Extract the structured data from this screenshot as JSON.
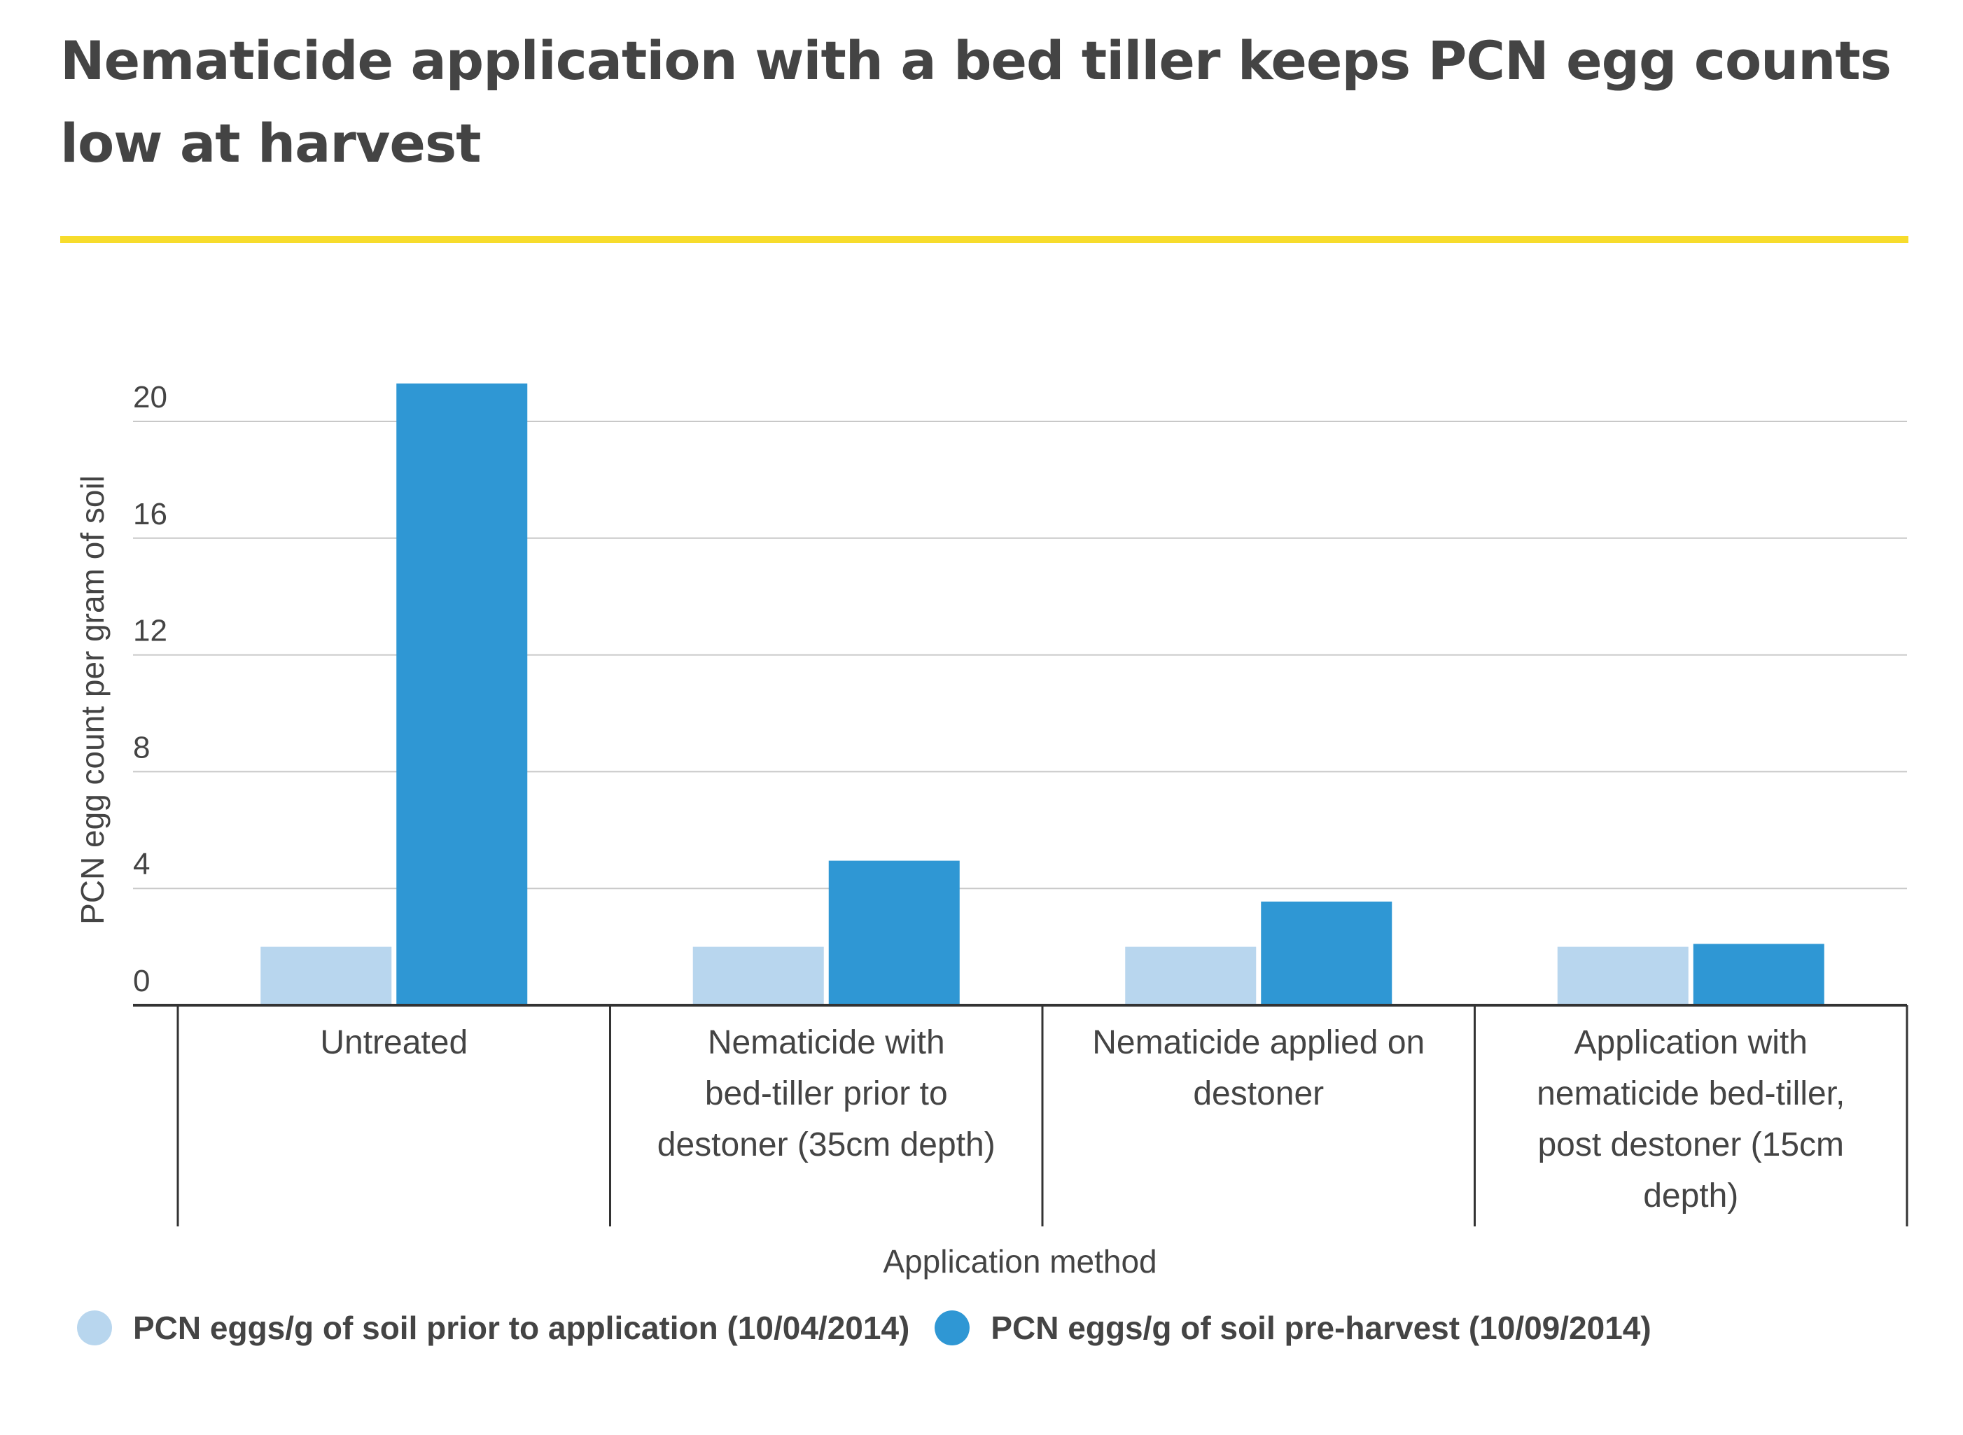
{
  "title": "Nematicide application with a bed tiller keeps PCN egg counts low at harvest",
  "colors": {
    "accent_rule": "#f7dc2c",
    "series_prior": "#b8d6ee",
    "series_harvest": "#2f97d4",
    "grid": "#c8c8c8",
    "axis": "#333333"
  },
  "chart_data": {
    "type": "bar",
    "title": "Nematicide application with a bed tiller keeps PCN egg counts low at harvest",
    "xlabel": "Application method",
    "ylabel": "PCN egg count per gram of soil",
    "ylim": [
      0,
      20
    ],
    "yticks": [
      0,
      4,
      8,
      12,
      16,
      20
    ],
    "grid": true,
    "legend_position": "bottom",
    "categories": [
      [
        "Untreated"
      ],
      [
        "Nematicide with",
        "bed-tiller prior to",
        "destoner (35cm depth)"
      ],
      [
        "Nematicide applied on",
        "destoner"
      ],
      [
        "Application with",
        "nematicide bed-tiller,",
        "post destoner (15cm",
        "depth)"
      ]
    ],
    "series": [
      {
        "name": "PCN eggs/g of soil prior to application (10/04/2014)",
        "color": "#b8d6ee",
        "values": [
          2.0,
          2.0,
          2.0,
          2.0
        ]
      },
      {
        "name": "PCN eggs/g of soil pre-harvest (10/09/2014)",
        "color": "#2f97d4",
        "values": [
          21.3,
          4.95,
          3.55,
          2.1
        ]
      }
    ]
  }
}
